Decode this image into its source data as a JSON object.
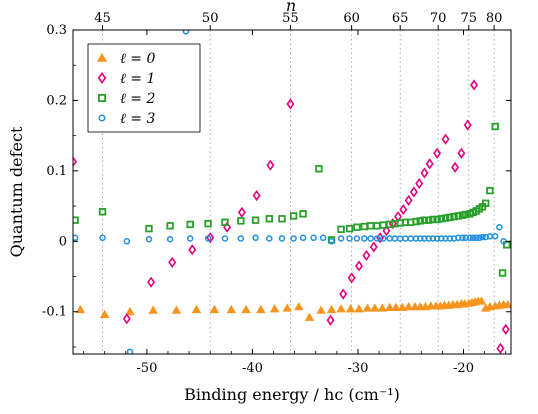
{
  "chart_data": {
    "type": "scatter",
    "xlabel": "Binding energy / hc (cm⁻¹)",
    "ylabel": "Quantum defect",
    "top_axis_label": "n",
    "xlim": [
      -57,
      -15.5
    ],
    "ylim": [
      -0.16,
      0.3
    ],
    "x_ticks": [
      -50,
      -40,
      -30,
      -20
    ],
    "x_tick_labels": [
      "-50",
      "-40",
      "-30",
      "-20"
    ],
    "y_ticks": [
      -0.1,
      0,
      0.1,
      0.2,
      0.3
    ],
    "y_tick_labels": [
      "-0.1",
      "0",
      "0.1",
      "0.2",
      "0.3"
    ],
    "top_ticks": [
      {
        "n": 45,
        "x": -54.2
      },
      {
        "n": 50,
        "x": -44.0
      },
      {
        "n": 55,
        "x": -36.4
      },
      {
        "n": 60,
        "x": -30.6
      },
      {
        "n": 65,
        "x": -26.0
      },
      {
        "n": 70,
        "x": -22.4
      },
      {
        "n": 75,
        "x": -19.5
      },
      {
        "n": 80,
        "x": -17.1
      }
    ],
    "grid": "vertical dotted lines at top-axis n ticks",
    "legend_position": "top-left",
    "series": [
      {
        "name": "ℓ = 0",
        "marker": "triangle",
        "color": "#f7941d",
        "points": [
          [
            -56.3,
            -0.097
          ],
          [
            -54,
            -0.104
          ],
          [
            -51.6,
            -0.1
          ],
          [
            -49.4,
            -0.098
          ],
          [
            -47.2,
            -0.098
          ],
          [
            -45.3,
            -0.097
          ],
          [
            -43.6,
            -0.097
          ],
          [
            -42,
            -0.097
          ],
          [
            -40.6,
            -0.097
          ],
          [
            -39.2,
            -0.097
          ],
          [
            -37.9,
            -0.096
          ],
          [
            -36.7,
            -0.095
          ],
          [
            -35.6,
            -0.093
          ],
          [
            -34.6,
            -0.108
          ],
          [
            -33.5,
            -0.098
          ],
          [
            -32.5,
            -0.097
          ],
          [
            -31.6,
            -0.096
          ],
          [
            -30.7,
            -0.096
          ],
          [
            -29.9,
            -0.096
          ],
          [
            -29.1,
            -0.095
          ],
          [
            -28.4,
            -0.095
          ],
          [
            -27.7,
            -0.095
          ],
          [
            -27.0,
            -0.094
          ],
          [
            -26.4,
            -0.094
          ],
          [
            -25.8,
            -0.094
          ],
          [
            -25.2,
            -0.093
          ],
          [
            -24.6,
            -0.093
          ],
          [
            -24.1,
            -0.093
          ],
          [
            -23.6,
            -0.093
          ],
          [
            -23.1,
            -0.092
          ],
          [
            -22.6,
            -0.092
          ],
          [
            -22.2,
            -0.092
          ],
          [
            -21.8,
            -0.091
          ],
          [
            -21.4,
            -0.091
          ],
          [
            -21.0,
            -0.09
          ],
          [
            -20.6,
            -0.09
          ],
          [
            -20.2,
            -0.089
          ],
          [
            -19.9,
            -0.089
          ],
          [
            -19.5,
            -0.088
          ],
          [
            -19.2,
            -0.087
          ],
          [
            -18.9,
            -0.086
          ],
          [
            -18.6,
            -0.085
          ],
          [
            -18.3,
            -0.085
          ],
          [
            -17.9,
            -0.095
          ],
          [
            -17.5,
            -0.093
          ],
          [
            -17.0,
            -0.092
          ],
          [
            -16.6,
            -0.091
          ],
          [
            -16.2,
            -0.09
          ],
          [
            -15.8,
            -0.09
          ]
        ]
      },
      {
        "name": "ℓ = 1",
        "marker": "diamond",
        "color": "#e6007e",
        "points": [
          [
            -57,
            0.113
          ],
          [
            -51.9,
            -0.11
          ],
          [
            -49.6,
            -0.058
          ],
          [
            -47.6,
            -0.03
          ],
          [
            -45.7,
            -0.012
          ],
          [
            -44,
            0.005
          ],
          [
            -42.4,
            0.02
          ],
          [
            -41,
            0.041
          ],
          [
            -39.6,
            0.065
          ],
          [
            -38.3,
            0.108
          ],
          [
            -36.4,
            0.195
          ],
          [
            -32.6,
            -0.112
          ],
          [
            -31.4,
            -0.075
          ],
          [
            -30.6,
            -0.052
          ],
          [
            -29.9,
            -0.035
          ],
          [
            -29.2,
            -0.02
          ],
          [
            -28.5,
            -0.008
          ],
          [
            -27.9,
            0.005
          ],
          [
            -27.3,
            0.015
          ],
          [
            -26.7,
            0.025
          ],
          [
            -26.2,
            0.035
          ],
          [
            -25.7,
            0.045
          ],
          [
            -25.2,
            0.058
          ],
          [
            -24.7,
            0.07
          ],
          [
            -24.2,
            0.082
          ],
          [
            -23.7,
            0.097
          ],
          [
            -23.2,
            0.11
          ],
          [
            -22.5,
            0.125
          ],
          [
            -21.7,
            0.145
          ],
          [
            -20.8,
            0.105
          ],
          [
            -20.2,
            0.125
          ],
          [
            -19.6,
            0.165
          ],
          [
            -19.0,
            0.222
          ],
          [
            -16.5,
            -0.152
          ],
          [
            -16.0,
            -0.125
          ]
        ]
      },
      {
        "name": "ℓ = 2",
        "marker": "square",
        "color": "#2aa02a",
        "points": [
          [
            -56.8,
            0.03
          ],
          [
            -54.2,
            0.042
          ],
          [
            -49.8,
            0.018
          ],
          [
            -47.8,
            0.022
          ],
          [
            -45.9,
            0.024
          ],
          [
            -44.2,
            0.025
          ],
          [
            -42.6,
            0.027
          ],
          [
            -41.1,
            0.029
          ],
          [
            -39.7,
            0.03
          ],
          [
            -38.4,
            0.032
          ],
          [
            -37.2,
            0.032
          ],
          [
            -36.1,
            0.036
          ],
          [
            -35.2,
            0.039
          ],
          [
            -33.7,
            0.103
          ],
          [
            -32.5,
            0.002
          ],
          [
            -31.6,
            0.017
          ],
          [
            -30.8,
            0.018
          ],
          [
            -30.1,
            0.02
          ],
          [
            -29.4,
            0.021
          ],
          [
            -28.8,
            0.022
          ],
          [
            -28.2,
            0.022
          ],
          [
            -27.6,
            0.023
          ],
          [
            -27.0,
            0.024
          ],
          [
            -26.5,
            0.025
          ],
          [
            -26.0,
            0.026
          ],
          [
            -25.5,
            0.027
          ],
          [
            -25.0,
            0.027
          ],
          [
            -24.5,
            0.028
          ],
          [
            -24.1,
            0.029
          ],
          [
            -23.7,
            0.03
          ],
          [
            -23.3,
            0.03
          ],
          [
            -22.9,
            0.031
          ],
          [
            -22.5,
            0.031
          ],
          [
            -22.1,
            0.032
          ],
          [
            -21.7,
            0.033
          ],
          [
            -21.3,
            0.034
          ],
          [
            -20.9,
            0.035
          ],
          [
            -20.5,
            0.036
          ],
          [
            -20.1,
            0.037
          ],
          [
            -19.8,
            0.038
          ],
          [
            -19.4,
            0.039
          ],
          [
            -19.1,
            0.041
          ],
          [
            -18.8,
            0.043
          ],
          [
            -18.5,
            0.046
          ],
          [
            -18.2,
            0.049
          ],
          [
            -17.9,
            0.054
          ],
          [
            -17.5,
            0.072
          ],
          [
            -17.0,
            0.163
          ],
          [
            -16.3,
            -0.045
          ],
          [
            -15.9,
            -0.005
          ]
        ]
      },
      {
        "name": "ℓ = 3",
        "marker": "circle",
        "color": "#1f8fe0",
        "points": [
          [
            -56.8,
            0.005
          ],
          [
            -54.2,
            0.005
          ],
          [
            -51.9,
            0.0
          ],
          [
            -49.8,
            0.003
          ],
          [
            -47.8,
            0.003
          ],
          [
            -45.9,
            0.004
          ],
          [
            -44.2,
            0.004
          ],
          [
            -42.6,
            0.004
          ],
          [
            -41.1,
            0.004
          ],
          [
            -39.7,
            0.005
          ],
          [
            -38.4,
            0.004
          ],
          [
            -37.2,
            0.004
          ],
          [
            -36.1,
            0.004
          ],
          [
            -35.2,
            0.005
          ],
          [
            -34.2,
            0.005
          ],
          [
            -33.3,
            0.005
          ],
          [
            -32.5,
            0.0
          ],
          [
            -31.6,
            0.004
          ],
          [
            -30.8,
            0.004
          ],
          [
            -30.1,
            0.004
          ],
          [
            -29.4,
            0.004
          ],
          [
            -28.8,
            0.004
          ],
          [
            -28.2,
            0.004
          ],
          [
            -27.6,
            0.004
          ],
          [
            -27.0,
            0.004
          ],
          [
            -26.5,
            0.004
          ],
          [
            -26.0,
            0.004
          ],
          [
            -25.5,
            0.004
          ],
          [
            -25.0,
            0.004
          ],
          [
            -24.5,
            0.004
          ],
          [
            -24.1,
            0.004
          ],
          [
            -23.7,
            0.004
          ],
          [
            -23.3,
            0.004
          ],
          [
            -22.9,
            0.004
          ],
          [
            -22.5,
            0.004
          ],
          [
            -22.1,
            0.004
          ],
          [
            -21.7,
            0.004
          ],
          [
            -21.3,
            0.004
          ],
          [
            -20.9,
            0.004
          ],
          [
            -20.5,
            0.005
          ],
          [
            -20.1,
            0.005
          ],
          [
            -19.8,
            0.005
          ],
          [
            -19.4,
            0.005
          ],
          [
            -19.1,
            0.005
          ],
          [
            -18.8,
            0.005
          ],
          [
            -18.5,
            0.005
          ],
          [
            -18.2,
            0.006
          ],
          [
            -17.9,
            0.006
          ],
          [
            -17.5,
            0.007
          ],
          [
            -17.0,
            0.007
          ],
          [
            -16.6,
            0.02
          ],
          [
            -16.2,
            0.0
          ],
          [
            -51.6,
            -0.157
          ],
          [
            -46.3,
            0.298
          ]
        ]
      }
    ]
  }
}
